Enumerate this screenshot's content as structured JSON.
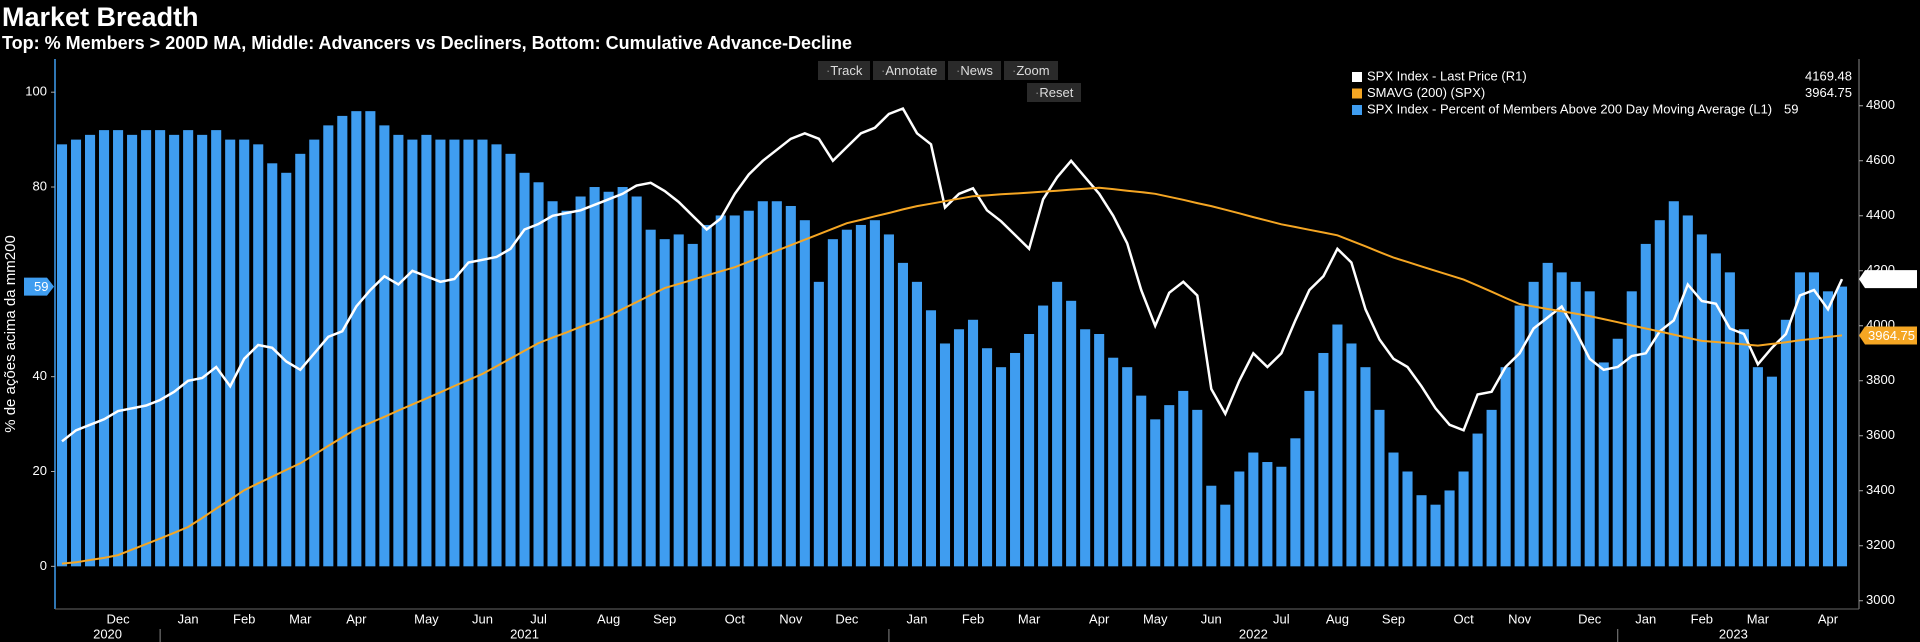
{
  "chart_data": {
    "type": "combo",
    "title": "Market Breadth",
    "subtitle": "Top: % Members > 200D MA, Middle: Advancers vs Decliners, Bottom: Cumulative Advance-Decline",
    "y_label": "% de ações acima da mm200",
    "categories": [
      null,
      null,
      null,
      null,
      "Dec",
      null,
      null,
      null,
      null,
      "Jan",
      null,
      null,
      null,
      "Feb",
      null,
      null,
      null,
      "Mar",
      null,
      null,
      null,
      "Apr",
      null,
      null,
      null,
      null,
      "May",
      null,
      null,
      null,
      "Jun",
      null,
      null,
      null,
      "Jul",
      null,
      null,
      null,
      null,
      "Aug",
      null,
      null,
      null,
      "Sep",
      null,
      null,
      null,
      null,
      "Oct",
      null,
      null,
      null,
      "Nov",
      null,
      null,
      null,
      "Dec",
      null,
      null,
      null,
      null,
      "Jan",
      null,
      null,
      null,
      "Feb",
      null,
      null,
      null,
      "Mar",
      null,
      null,
      null,
      null,
      "Apr",
      null,
      null,
      null,
      "May",
      null,
      null,
      null,
      "Jun",
      null,
      null,
      null,
      null,
      "Jul",
      null,
      null,
      null,
      "Aug",
      null,
      null,
      null,
      "Sep",
      null,
      null,
      null,
      null,
      "Oct",
      null,
      null,
      null,
      "Nov",
      null,
      null,
      null,
      null,
      "Dec",
      null,
      null,
      null,
      "Jan",
      null,
      null,
      null,
      "Feb",
      null,
      null,
      null,
      "Mar",
      null,
      null,
      null,
      null,
      "Apr",
      null
    ],
    "years": [
      "2020",
      "2021",
      "2022",
      "2023"
    ],
    "ylim": [
      -9,
      107
    ],
    "yticks": [
      0,
      20,
      40,
      80,
      100
    ],
    "y2lim": [
      2970,
      4970
    ],
    "y2ticks": [
      3000,
      3200,
      3400,
      3600,
      3800,
      4000,
      4200,
      4400,
      4600,
      4800
    ],
    "series": [
      {
        "name": "SPX Index - Last Price (R1)",
        "type": "line",
        "axis": "y2",
        "color": "#ffffff",
        "values": [
          3580,
          3620,
          3640,
          3660,
          3690,
          3700,
          3710,
          3730,
          3760,
          3800,
          3810,
          3850,
          3780,
          3880,
          3930,
          3920,
          3870,
          3840,
          3900,
          3960,
          3980,
          4070,
          4130,
          4180,
          4150,
          4200,
          4180,
          4160,
          4170,
          4230,
          4240,
          4250,
          4280,
          4350,
          4370,
          4400,
          4410,
          4420,
          4440,
          4460,
          4480,
          4510,
          4520,
          4490,
          4450,
          4400,
          4350,
          4390,
          4480,
          4550,
          4600,
          4640,
          4680,
          4700,
          4680,
          4600,
          4650,
          4700,
          4720,
          4770,
          4790,
          4700,
          4660,
          4430,
          4480,
          4500,
          4420,
          4380,
          4330,
          4280,
          4460,
          4540,
          4600,
          4540,
          4480,
          4400,
          4300,
          4130,
          4000,
          4120,
          4160,
          4110,
          3770,
          3680,
          3800,
          3900,
          3850,
          3900,
          4020,
          4130,
          4180,
          4280,
          4230,
          4060,
          3950,
          3880,
          3850,
          3780,
          3700,
          3640,
          3620,
          3750,
          3760,
          3850,
          3900,
          3990,
          4030,
          4070,
          3980,
          3880,
          3840,
          3850,
          3890,
          3900,
          3980,
          4020,
          4150,
          4090,
          4080,
          3990,
          3970,
          3860,
          3920,
          3970,
          4110,
          4130,
          4060,
          4169.48
        ]
      },
      {
        "name": "SMAVG (200) (SPX)",
        "type": "line",
        "axis": "y2",
        "color": "#f5a623",
        "values": [
          3135,
          3140,
          3148,
          3156,
          3166,
          3186,
          3206,
          3226,
          3247,
          3268,
          3301,
          3335,
          3368,
          3402,
          3427,
          3451,
          3476,
          3500,
          3531,
          3563,
          3594,
          3625,
          3647,
          3669,
          3692,
          3714,
          3736,
          3758,
          3781,
          3803,
          3825,
          3853,
          3881,
          3909,
          3937,
          3957,
          3976,
          3996,
          4015,
          4035,
          4061,
          4086,
          4112,
          4137,
          4152,
          4167,
          4183,
          4198,
          4213,
          4233,
          4253,
          4273,
          4293,
          4313,
          4333,
          4353,
          4373,
          4385,
          4398,
          4410,
          4423,
          4435,
          4444,
          4453,
          4462,
          4471,
          4474,
          4478,
          4481,
          4484,
          4488,
          4491,
          4495,
          4498,
          4502,
          4497,
          4491,
          4486,
          4480,
          4469,
          4458,
          4446,
          4435,
          4422,
          4409,
          4395,
          4382,
          4369,
          4359,
          4349,
          4339,
          4329,
          4309,
          4289,
          4268,
          4248,
          4232,
          4216,
          4200,
          4184,
          4168,
          4146,
          4124,
          4101,
          4079,
          4070,
          4061,
          4053,
          4044,
          4035,
          4024,
          4013,
          4001,
          3990,
          3979,
          3968,
          3956,
          3945,
          3941,
          3937,
          3932,
          3928,
          3934,
          3940,
          3947,
          3953,
          3959,
          3964.75
        ]
      },
      {
        "name": "SPX Index - Percent of Members Above 200 Day Moving Average (L1)",
        "type": "bar",
        "color": "#3f9df0",
        "values": [
          89,
          90,
          91,
          92,
          92,
          91,
          92,
          92,
          91,
          92,
          91,
          92,
          90,
          90,
          89,
          85,
          83,
          87,
          90,
          93,
          95,
          96,
          96,
          93,
          91,
          90,
          91,
          90,
          90,
          90,
          90,
          89,
          87,
          83,
          81,
          77,
          75,
          78,
          80,
          79,
          80,
          78,
          71,
          69,
          70,
          68,
          72,
          74,
          74,
          75,
          77,
          77,
          76,
          73,
          60,
          69,
          71,
          72,
          73,
          70,
          64,
          60,
          54,
          47,
          50,
          52,
          46,
          42,
          45,
          49,
          55,
          60,
          56,
          50,
          49,
          44,
          42,
          36,
          31,
          34,
          37,
          33,
          17,
          13,
          20,
          24,
          22,
          21,
          27,
          37,
          45,
          51,
          47,
          42,
          33,
          24,
          20,
          15,
          13,
          16,
          20,
          28,
          33,
          42,
          55,
          60,
          64,
          62,
          60,
          58,
          43,
          48,
          58,
          68,
          73,
          77,
          74,
          70,
          66,
          62,
          50,
          42,
          40,
          52,
          62,
          62,
          58,
          59
        ]
      }
    ]
  },
  "toolbar": [
    "Track",
    "Annotate",
    "News",
    "Zoom"
  ],
  "reset": "Reset"
}
